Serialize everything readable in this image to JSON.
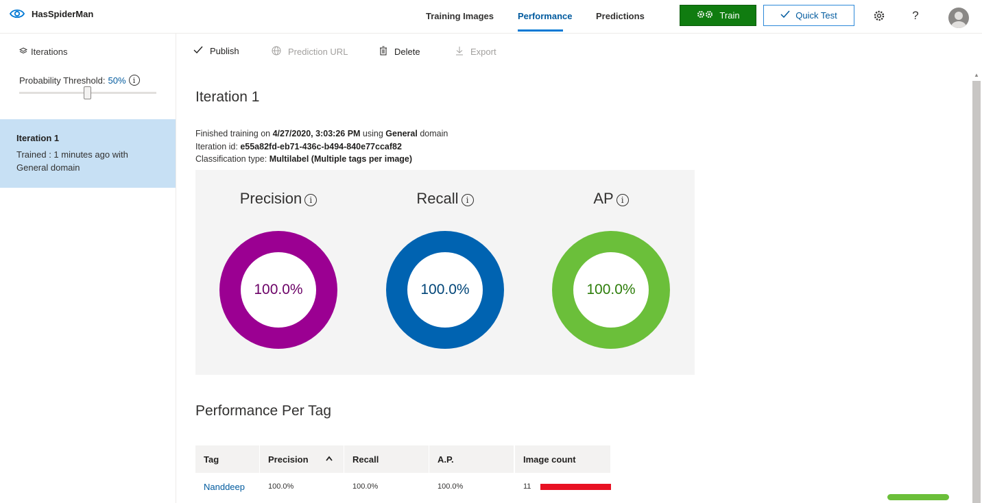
{
  "app": {
    "project_name": "HasSpiderMan"
  },
  "nav": {
    "tabs": [
      {
        "label": "Training Images"
      },
      {
        "label": "Performance"
      },
      {
        "label": "Predictions"
      }
    ],
    "active_tab": "Performance"
  },
  "header_buttons": {
    "train_label": "Train",
    "quick_test_label": "Quick Test",
    "help_label": "?"
  },
  "sidebar": {
    "heading": "Iterations",
    "threshold_label": "Probability Threshold:",
    "threshold_value": "50%",
    "threshold_fraction": 0.5,
    "iterations": [
      {
        "title": "Iteration 1",
        "line1": "Trained : 1 minutes ago with",
        "line2": "General domain"
      }
    ]
  },
  "commands": {
    "publish": "Publish",
    "prediction_url": "Prediction URL",
    "delete": "Delete",
    "export": "Export"
  },
  "iteration": {
    "title": "Iteration 1",
    "finished_prefix": "Finished training on ",
    "finished_date": "4/27/2020, 3:03:26 PM",
    "using": " using ",
    "domain": "General",
    "domain_suffix": " domain",
    "id_label": "Iteration id: ",
    "id_value": "e55a82fd-eb71-436c-b494-840e77ccaf82",
    "type_label": "Classification type: ",
    "type_value": "Multilabel (Multiple tags per image)"
  },
  "metrics": [
    {
      "label": "Precision",
      "value": "100.0%",
      "fraction": 1.0,
      "color": "#9b0092",
      "text_color": "#6b0066"
    },
    {
      "label": "Recall",
      "value": "100.0%",
      "fraction": 1.0,
      "color": "#0063b1",
      "text_color": "#004578"
    },
    {
      "label": "AP",
      "value": "100.0%",
      "fraction": 1.0,
      "color": "#6bbf3a",
      "text_color": "#2d7d0a"
    }
  ],
  "per_tag": {
    "title": "Performance Per Tag",
    "columns": [
      "Tag",
      "Precision",
      "Recall",
      "A.P.",
      "Image count"
    ],
    "sort_indicator": "^",
    "rows": [
      {
        "tag": "Nanddeep",
        "precision": "100.0%",
        "recall": "100.0%",
        "ap": "100.0%",
        "image_count": "11"
      }
    ]
  },
  "colors": {
    "accent": "#0078d4",
    "train_green": "#107c10",
    "image_count_bar": "#e81123"
  }
}
